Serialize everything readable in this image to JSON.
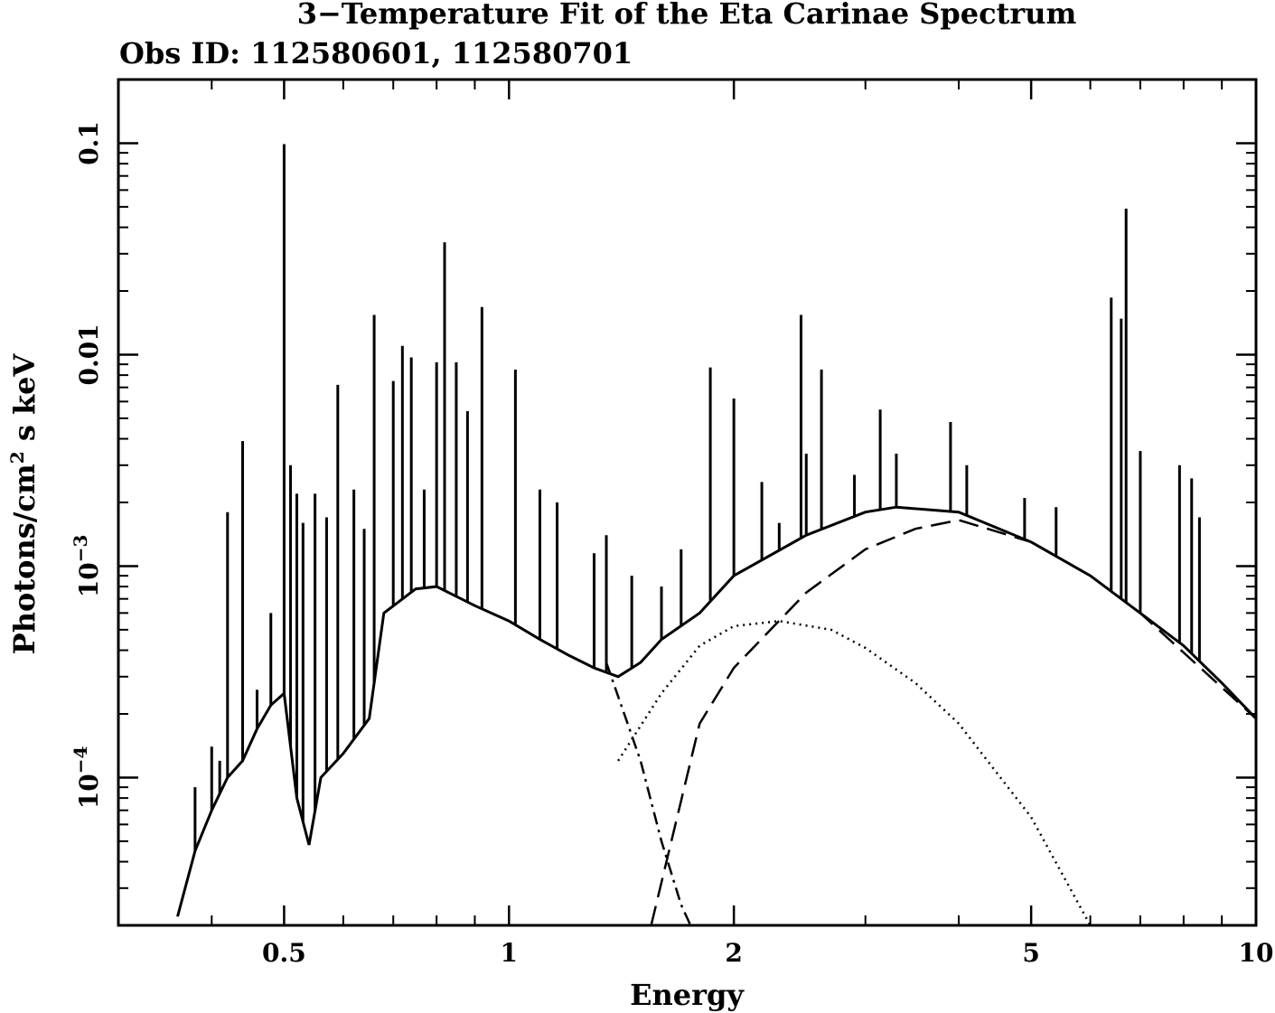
{
  "chart_data": {
    "type": "line",
    "title": "3−Temperature Fit of the Eta Carinae Spectrum",
    "subtitle": "Obs ID: 112580601, 112580701",
    "xlabel": "Energy",
    "ylabel_main": "Photons/cm",
    "ylabel_sup": "2",
    "ylabel_tail": " s keV",
    "x_scale": "log",
    "y_scale": "log",
    "xlim": [
      0.3,
      10
    ],
    "ylim": [
      2e-05,
      0.2
    ],
    "grid": false,
    "legend": "none",
    "x_ticks": [
      {
        "value": 0.5,
        "label": "0.5"
      },
      {
        "value": 1,
        "label": "1"
      },
      {
        "value": 2,
        "label": "2"
      },
      {
        "value": 5,
        "label": "5"
      },
      {
        "value": 10,
        "label": "10"
      }
    ],
    "y_ticks": [
      {
        "value": 0.1,
        "label": "0.1",
        "sup": ""
      },
      {
        "value": 0.01,
        "label": "0.01",
        "sup": ""
      },
      {
        "value": 0.001,
        "label": "10",
        "sup": "−3"
      },
      {
        "value": 0.0001,
        "label": "10",
        "sup": "−4"
      }
    ],
    "series": [
      {
        "style": "solid",
        "continuum": [
          [
            0.36,
            2.2e-05
          ],
          [
            0.38,
            4.5e-05
          ],
          [
            0.4,
            7e-05
          ],
          [
            0.42,
            0.0001
          ],
          [
            0.44,
            0.00012
          ],
          [
            0.46,
            0.00017
          ],
          [
            0.48,
            0.00022
          ],
          [
            0.5,
            0.00025
          ],
          [
            0.52,
            8e-05
          ],
          [
            0.54,
            4.8e-05
          ],
          [
            0.56,
            0.0001
          ],
          [
            0.6,
            0.00013
          ],
          [
            0.65,
            0.00019
          ],
          [
            0.68,
            0.0006
          ],
          [
            0.75,
            0.00078
          ],
          [
            0.8,
            0.0008
          ],
          [
            0.9,
            0.00065
          ],
          [
            1.0,
            0.00055
          ],
          [
            1.1,
            0.00045
          ],
          [
            1.2,
            0.00038
          ],
          [
            1.3,
            0.00033
          ],
          [
            1.4,
            0.0003
          ],
          [
            1.5,
            0.00035
          ],
          [
            1.6,
            0.00045
          ],
          [
            1.8,
            0.0006
          ],
          [
            2.0,
            0.0009
          ],
          [
            2.5,
            0.0014
          ],
          [
            3.0,
            0.0018
          ],
          [
            3.3,
            0.0019
          ],
          [
            4.0,
            0.0018
          ],
          [
            5.0,
            0.0013
          ],
          [
            6.0,
            0.0009
          ],
          [
            7.0,
            0.0006
          ],
          [
            8.0,
            0.00042
          ],
          [
            9.0,
            0.00028
          ],
          [
            10.0,
            0.00019
          ]
        ],
        "lines": [
          [
            0.38,
            9e-05
          ],
          [
            0.4,
            0.00014
          ],
          [
            0.41,
            0.00012
          ],
          [
            0.42,
            0.0018
          ],
          [
            0.44,
            0.0039
          ],
          [
            0.46,
            0.00026
          ],
          [
            0.48,
            0.0006
          ],
          [
            0.5,
            0.099
          ],
          [
            0.51,
            0.003
          ],
          [
            0.52,
            0.0022
          ],
          [
            0.53,
            0.0016
          ],
          [
            0.55,
            0.0022
          ],
          [
            0.57,
            0.0017
          ],
          [
            0.59,
            0.0072
          ],
          [
            0.62,
            0.0023
          ],
          [
            0.64,
            0.0015
          ],
          [
            0.66,
            0.0154
          ],
          [
            0.7,
            0.0075
          ],
          [
            0.72,
            0.011
          ],
          [
            0.74,
            0.0097
          ],
          [
            0.77,
            0.0023
          ],
          [
            0.8,
            0.0092
          ],
          [
            0.82,
            0.034
          ],
          [
            0.85,
            0.0092
          ],
          [
            0.88,
            0.0054
          ],
          [
            0.92,
            0.0168
          ],
          [
            1.02,
            0.0085
          ],
          [
            1.1,
            0.0023
          ],
          [
            1.16,
            0.002
          ],
          [
            1.3,
            0.00115
          ],
          [
            1.35,
            0.0014
          ],
          [
            1.46,
            0.0009
          ],
          [
            1.6,
            0.0008
          ],
          [
            1.7,
            0.0012
          ],
          [
            1.86,
            0.0087
          ],
          [
            2.0,
            0.0062
          ],
          [
            2.18,
            0.0025
          ],
          [
            2.3,
            0.0016
          ],
          [
            2.46,
            0.0154
          ],
          [
            2.5,
            0.0034
          ],
          [
            2.62,
            0.0085
          ],
          [
            2.9,
            0.0027
          ],
          [
            3.14,
            0.0055
          ],
          [
            3.3,
            0.0034
          ],
          [
            3.9,
            0.0048
          ],
          [
            4.1,
            0.003
          ],
          [
            4.9,
            0.0021
          ],
          [
            5.4,
            0.0019
          ],
          [
            6.4,
            0.0186
          ],
          [
            6.6,
            0.0148
          ],
          [
            6.7,
            0.049
          ],
          [
            7.0,
            0.0035
          ],
          [
            7.9,
            0.003
          ],
          [
            8.2,
            0.0026
          ],
          [
            8.4,
            0.0017
          ]
        ]
      },
      {
        "style": "dot-dash",
        "points": [
          [
            1.35,
            0.00035
          ],
          [
            1.5,
            0.00012
          ],
          [
            1.6,
            5e-05
          ],
          [
            1.7,
            2.5e-05
          ],
          [
            1.75,
            2e-05
          ]
        ]
      },
      {
        "style": "long-dash",
        "points": [
          [
            1.55,
            2e-05
          ],
          [
            1.8,
            0.00018
          ],
          [
            2.0,
            0.00033
          ],
          [
            2.5,
            0.00075
          ],
          [
            3.0,
            0.0012
          ],
          [
            3.5,
            0.0015
          ],
          [
            4.0,
            0.00165
          ],
          [
            5.0,
            0.0013
          ],
          [
            6.0,
            0.0009
          ],
          [
            7.0,
            0.0006
          ],
          [
            10.0,
            0.00019
          ]
        ]
      },
      {
        "style": "dotted",
        "points": [
          [
            1.4,
            0.00012
          ],
          [
            1.6,
            0.00025
          ],
          [
            1.8,
            0.00042
          ],
          [
            2.0,
            0.00052
          ],
          [
            2.3,
            0.00055
          ],
          [
            2.7,
            0.0005
          ],
          [
            3.0,
            0.00041
          ],
          [
            3.5,
            0.00028
          ],
          [
            4.0,
            0.00018
          ],
          [
            4.5,
            0.000105
          ],
          [
            5.0,
            6.5e-05
          ],
          [
            6.0,
            2e-05
          ]
        ]
      }
    ]
  }
}
